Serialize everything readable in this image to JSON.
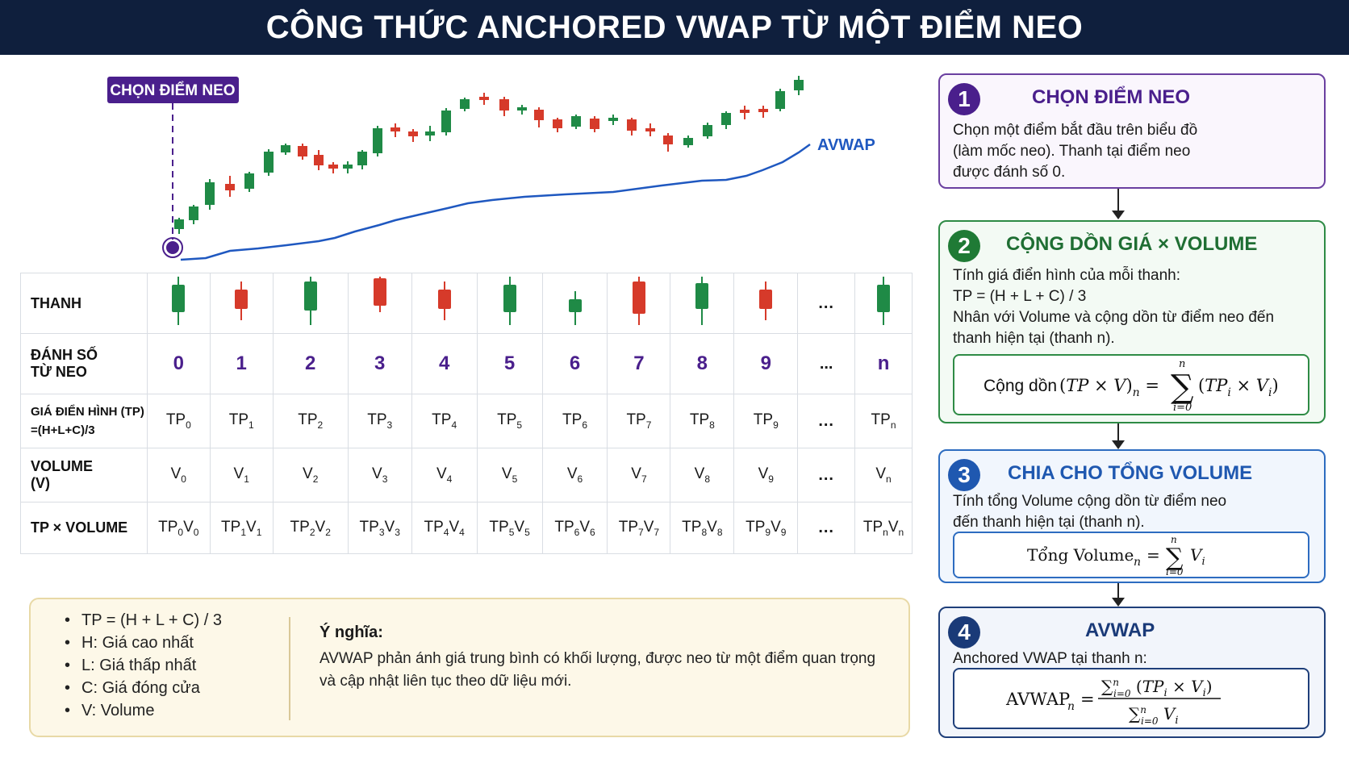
{
  "title": "CÔNG THỨC ANCHORED VWAP TỪ MỘT ĐIỂM NEO",
  "chart": {
    "anchor_label": "CHỌN ĐIỂM NEO",
    "line_label": "AVWAP",
    "colors": {
      "up": "#1f8a46",
      "down": "#d63a2a",
      "avwap": "#1f58c0",
      "anchor": "#4a1f8c"
    }
  },
  "table": {
    "row_headers": {
      "candle": "THANH",
      "index_l1": "ĐÁNH SỐ",
      "index_l2": "TỪ NEO",
      "tp_l1": "GIÁ ĐIỂN HÌNH (TP)",
      "tp_l2": "=(H+L+C)/3",
      "vol_l1": "VOLUME",
      "vol_l2": "(V)",
      "tpv": "TP × VOLUME"
    },
    "columns": [
      {
        "index": "0",
        "sub": "0",
        "candle": "up"
      },
      {
        "index": "1",
        "sub": "1",
        "candle": "down"
      },
      {
        "index": "2",
        "sub": "2",
        "candle": "up"
      },
      {
        "index": "3",
        "sub": "3",
        "candle": "down"
      },
      {
        "index": "4",
        "sub": "4",
        "candle": "down"
      },
      {
        "index": "5",
        "sub": "5",
        "candle": "up"
      },
      {
        "index": "6",
        "sub": "6",
        "candle": "up"
      },
      {
        "index": "7",
        "sub": "7",
        "candle": "down"
      },
      {
        "index": "8",
        "sub": "8",
        "candle": "up"
      },
      {
        "index": "9",
        "sub": "9",
        "candle": "down"
      },
      {
        "index": "...",
        "sub": null,
        "candle": null
      },
      {
        "index": "n",
        "sub": "n",
        "candle": "up"
      }
    ]
  },
  "legend": {
    "items": [
      "TP = (H + L + C) / 3",
      "H:  Giá cao nhất",
      "L:  Giá thấp nhất",
      "C:  Giá đóng cửa",
      "V:  Volume"
    ],
    "meaning_title": "Ý nghĩa:",
    "meaning_line1": "AVWAP phản ánh giá trung bình có khối lượng, được neo từ một điểm quan trọng",
    "meaning_line2": "và cập nhật liên tục theo dữ liệu mới."
  },
  "steps": [
    {
      "number": "1",
      "title": "CHỌN ĐIỂM NEO",
      "lines": [
        "Chọn một điểm bắt đầu trên biểu đồ",
        "(làm mốc neo). Thanh tại điểm neo",
        "được đánh số 0."
      ]
    },
    {
      "number": "2",
      "title": "CỘNG DỒN GIÁ × VOLUME",
      "lines": [
        "Tính giá điển hình của mỗi thanh:",
        "TP = (H + L + C) / 3",
        "Nhân với Volume và cộng dồn từ điểm neo đến",
        "thanh hiện tại (thanh n)."
      ],
      "formula_label": "Cộng dồn"
    },
    {
      "number": "3",
      "title": "CHIA CHO TỔNG VOLUME",
      "lines": [
        "Tính tổng Volume cộng dồn từ điểm neo",
        "đến thanh hiện tại (thanh n)."
      ],
      "formula_label": "Tổng Volume"
    },
    {
      "number": "4",
      "title": "AVWAP",
      "lines": [
        "Anchored VWAP tại thanh n:"
      ],
      "formula_label": "AVWAP"
    }
  ]
}
